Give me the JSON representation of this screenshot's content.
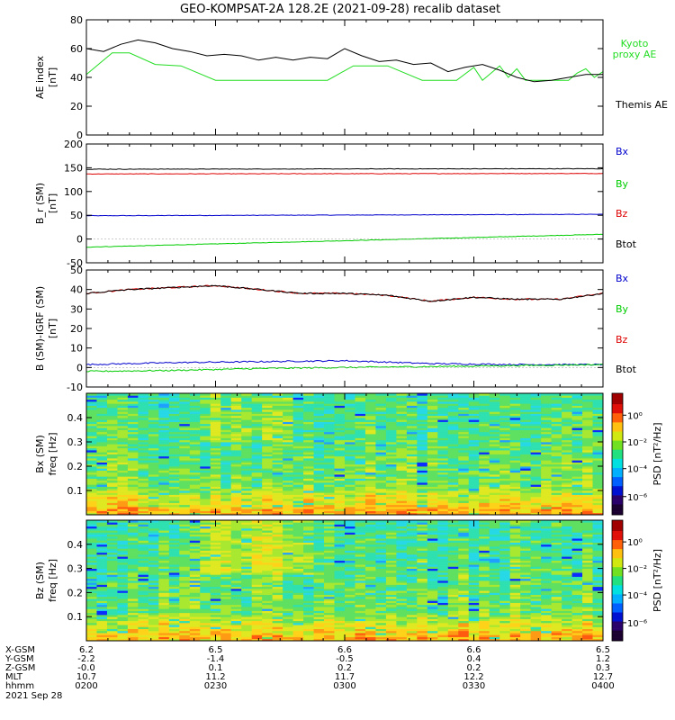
{
  "title": "GEO-KOMPSAT-2A 128.2E (2021-09-28) recalib dataset",
  "colors": {
    "black": "#000000",
    "red": "#dd0000",
    "green": "#00cc00",
    "blue": "#0000cc",
    "kyoto": "#22dd22"
  },
  "chart_data": [
    {
      "type": "line",
      "ylabel": "AE index\n[nT]",
      "ylim": [
        0,
        80
      ],
      "yticks": [
        "0",
        "20",
        "40",
        "60",
        "80"
      ],
      "x_range": [
        "02:00",
        "04:00"
      ],
      "series": [
        {
          "name": "Kyoto proxy AE",
          "color": "#22dd22",
          "x": [
            0,
            6,
            10,
            16,
            22,
            30,
            40,
            56,
            62,
            70,
            78,
            86,
            90,
            92,
            94,
            96,
            98,
            100,
            102,
            104,
            106,
            108,
            110,
            112,
            114,
            116,
            118,
            120
          ],
          "values": [
            42,
            57,
            57,
            49,
            48,
            38,
            38,
            38,
            48,
            48,
            38,
            38,
            47,
            38,
            43,
            48,
            40,
            46,
            38,
            38,
            38,
            38,
            38,
            38,
            43,
            46,
            40,
            44
          ]
        },
        {
          "name": "Themis AE",
          "color": "#000000",
          "x": [
            0,
            4,
            8,
            12,
            16,
            20,
            24,
            28,
            32,
            36,
            40,
            44,
            48,
            52,
            56,
            60,
            64,
            68,
            72,
            76,
            80,
            84,
            88,
            92,
            96,
            100,
            104,
            108,
            112,
            116,
            120
          ],
          "values": [
            60,
            58,
            63,
            66,
            64,
            60,
            58,
            55,
            56,
            55,
            52,
            54,
            52,
            54,
            53,
            60,
            55,
            51,
            52,
            49,
            50,
            44,
            47,
            49,
            45,
            40,
            37,
            38,
            40,
            42,
            42
          ]
        }
      ]
    },
    {
      "type": "line",
      "ylabel": "B_r (SM)\n[nT]",
      "ylim": [
        -50,
        200
      ],
      "yticks": [
        "-50",
        "0",
        "50",
        "100",
        "150",
        "200"
      ],
      "legend": [
        "Bx",
        "By",
        "Bz",
        "Btot"
      ],
      "series": [
        {
          "name": "Bx",
          "color": "#0000cc",
          "x": [
            0,
            120
          ],
          "values": [
            49,
            52
          ]
        },
        {
          "name": "By",
          "color": "#00cc00",
          "x": [
            0,
            120
          ],
          "values": [
            -17,
            10
          ]
        },
        {
          "name": "Bz",
          "color": "#dd0000",
          "x": [
            0,
            120
          ],
          "values": [
            137,
            138
          ]
        },
        {
          "name": "Btot",
          "color": "#000000",
          "x": [
            0,
            120
          ],
          "values": [
            147,
            148
          ]
        }
      ]
    },
    {
      "type": "line",
      "ylabel": "B (SM)-IGRF (SM)\n[nT]",
      "ylim": [
        -10,
        50
      ],
      "yticks": [
        "-10",
        "0",
        "10",
        "20",
        "30",
        "40",
        "50"
      ],
      "legend": [
        "Bx",
        "By",
        "Bz",
        "Btot"
      ],
      "series": [
        {
          "name": "Bx",
          "color": "#0000cc",
          "x": [
            0,
            20,
            40,
            60,
            80,
            100,
            120
          ],
          "values": [
            1.5,
            2.5,
            3,
            3.5,
            2,
            1.5,
            1.5
          ]
        },
        {
          "name": "By",
          "color": "#00cc00",
          "x": [
            0,
            20,
            40,
            60,
            80,
            100,
            120
          ],
          "values": [
            -2,
            -1.5,
            -0.5,
            0,
            0.5,
            1,
            1.5
          ]
        },
        {
          "name": "Bz",
          "color": "#dd0000",
          "x": [
            0,
            10,
            20,
            30,
            40,
            50,
            60,
            70,
            80,
            90,
            100,
            110,
            120
          ],
          "values": [
            38,
            40,
            41,
            42,
            40,
            38,
            38,
            37,
            34,
            36,
            35,
            35,
            38
          ]
        },
        {
          "name": "Btot",
          "color": "#000000",
          "x": [
            0,
            10,
            20,
            30,
            40,
            50,
            60,
            70,
            80,
            90,
            100,
            110,
            120
          ],
          "values": [
            38,
            40,
            41,
            42,
            40,
            38,
            38,
            37,
            34,
            36,
            35,
            35,
            38
          ]
        }
      ]
    },
    {
      "type": "heatmap",
      "ylabel": "Bx (SM)\nfreq [Hz]",
      "ylim": [
        0,
        0.5
      ],
      "yticks": [
        "0.1",
        "0.2",
        "0.3",
        "0.4"
      ],
      "colorbar": {
        "label": "PSD [nT²/Hz]",
        "ticks": [
          "10⁰",
          "10⁻²",
          "10⁻⁴",
          "10⁻⁶"
        ]
      }
    },
    {
      "type": "heatmap",
      "ylabel": "Bz (SM)\nfreq [Hz]",
      "ylim": [
        0,
        0.5
      ],
      "yticks": [
        "0.1",
        "0.2",
        "0.3",
        "0.4"
      ],
      "colorbar": {
        "label": "PSD [nT²/Hz]",
        "ticks": [
          "10⁰",
          "10⁻²",
          "10⁻⁴",
          "10⁻⁶"
        ]
      }
    }
  ],
  "annotations": {
    "kyoto": "Kyoto\nproxy AE",
    "themis": "Themis AE"
  },
  "ephemeris": {
    "labels": [
      "X-GSM",
      "Y-GSM",
      "Z-GSM",
      "MLT",
      "hhmm"
    ],
    "columns": [
      [
        "6.2",
        "-2.2",
        "-0.0",
        "10.7",
        "0200"
      ],
      [
        "6.5",
        "-1.4",
        "0.1",
        "11.2",
        "0230"
      ],
      [
        "6.6",
        "-0.5",
        "0.2",
        "11.7",
        "0300"
      ],
      [
        "6.6",
        "0.4",
        "0.2",
        "12.2",
        "0330"
      ],
      [
        "6.5",
        "1.2",
        "0.3",
        "12.7",
        "0400"
      ]
    ],
    "date": "2021 Sep 28"
  }
}
